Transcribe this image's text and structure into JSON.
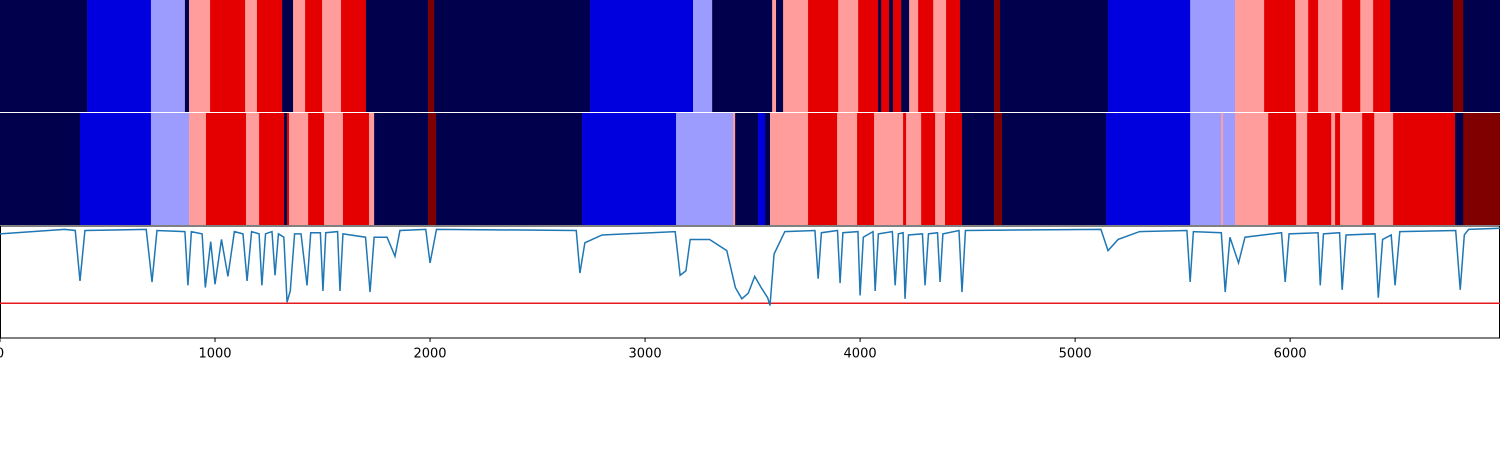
{
  "chart_data": [
    {
      "type": "band",
      "xlim": [
        0,
        6976
      ],
      "colors": [
        "#00004c",
        "#0000de",
        "#9c9cff",
        "#ff9c9c",
        "#e40000",
        "#800000"
      ],
      "starts": [
        0,
        405,
        702,
        860,
        879,
        977,
        1140,
        1195,
        1312,
        1363,
        1419,
        1498,
        1586,
        1702,
        1991,
        2019,
        2744,
        3223,
        3312,
        3591,
        3609,
        3642,
        3758,
        3898,
        3991,
        4084,
        4098,
        4135,
        4153,
        4191,
        4228,
        4270,
        4340,
        4400,
        4465,
        4623,
        4651,
        5153,
        5535,
        5744,
        5879,
        6023,
        6084,
        6130,
        6242,
        6326,
        6386,
        6465,
        6758,
        6805
      ],
      "states": [
        0,
        1,
        2,
        0,
        3,
        4,
        3,
        4,
        0,
        3,
        4,
        3,
        4,
        0,
        5,
        0,
        1,
        2,
        0,
        3,
        0,
        3,
        4,
        3,
        4,
        0,
        4,
        0,
        4,
        0,
        3,
        4,
        3,
        4,
        0,
        5,
        0,
        1,
        2,
        3,
        4,
        3,
        4,
        3,
        4,
        3,
        4,
        0,
        5,
        0
      ]
    },
    {
      "type": "band",
      "xlim": [
        0,
        6976
      ],
      "colors": [
        "#00004c",
        "#0000de",
        "#9c9cff",
        "#ff9c9c",
        "#e40000",
        "#800000"
      ],
      "starts": [
        0,
        372,
        702,
        879,
        958,
        1144,
        1205,
        1321,
        1335,
        1344,
        1433,
        1507,
        1595,
        1716,
        1740,
        1991,
        2028,
        2707,
        3144,
        3409,
        3419,
        3525,
        3558,
        3581,
        3758,
        3893,
        3986,
        4065,
        4200,
        4214,
        4284,
        4349,
        4395,
        4474,
        4623,
        4660,
        5144,
        5535,
        5679,
        5688,
        5744,
        5898,
        6028,
        6079,
        6191,
        6209,
        6232,
        6335,
        6391,
        6479,
        6767,
        6805
      ],
      "states": [
        0,
        1,
        2,
        3,
        4,
        3,
        4,
        0,
        4,
        3,
        4,
        3,
        4,
        3,
        0,
        5,
        0,
        1,
        2,
        3,
        0,
        1,
        0,
        3,
        4,
        3,
        4,
        3,
        4,
        3,
        4,
        3,
        4,
        0,
        5,
        0,
        1,
        2,
        3,
        2,
        3,
        4,
        3,
        4,
        3,
        4,
        3,
        4,
        3,
        4,
        0,
        5
      ]
    },
    {
      "type": "line",
      "xlim": [
        0,
        6976
      ],
      "ylim": [
        0,
        1
      ],
      "color": "#1f77b4",
      "threshold": 0.31,
      "threshold_color": "#e41a1c",
      "xticks": [
        0,
        1000,
        2000,
        3000,
        4000,
        5000,
        6000
      ],
      "x": [
        0,
        300,
        350,
        372,
        395,
        680,
        707,
        730,
        860,
        874,
        890,
        940,
        955,
        980,
        1000,
        1030,
        1060,
        1090,
        1130,
        1149,
        1170,
        1205,
        1218,
        1235,
        1265,
        1279,
        1295,
        1320,
        1335,
        1350,
        1370,
        1400,
        1428,
        1445,
        1490,
        1502,
        1515,
        1570,
        1581,
        1595,
        1700,
        1721,
        1740,
        1800,
        1837,
        1860,
        1980,
        2000,
        2030,
        2680,
        2697,
        2720,
        2800,
        3140,
        3163,
        3190,
        3210,
        3300,
        3380,
        3420,
        3450,
        3480,
        3510,
        3540,
        3570,
        3581,
        3600,
        3650,
        3790,
        3805,
        3820,
        3895,
        3907,
        3920,
        3990,
        4000,
        4015,
        4060,
        4070,
        4085,
        4150,
        4163,
        4178,
        4200,
        4209,
        4225,
        4290,
        4302,
        4318,
        4360,
        4372,
        4385,
        4460,
        4474,
        4490,
        5120,
        5153,
        5200,
        5300,
        5520,
        5535,
        5550,
        5680,
        5698,
        5720,
        5760,
        5790,
        5960,
        5977,
        5995,
        6130,
        6140,
        6155,
        6230,
        6242,
        6260,
        6395,
        6410,
        6430,
        6470,
        6488,
        6510,
        6770,
        6791,
        6810,
        6830,
        6976
      ],
      "values": [
        0.93,
        0.97,
        0.96,
        0.51,
        0.96,
        0.97,
        0.5,
        0.96,
        0.95,
        0.47,
        0.95,
        0.93,
        0.45,
        0.86,
        0.48,
        0.88,
        0.55,
        0.95,
        0.93,
        0.51,
        0.95,
        0.93,
        0.47,
        0.93,
        0.95,
        0.56,
        0.93,
        0.9,
        0.32,
        0.42,
        0.93,
        0.93,
        0.47,
        0.94,
        0.94,
        0.42,
        0.94,
        0.95,
        0.42,
        0.93,
        0.9,
        0.41,
        0.9,
        0.9,
        0.73,
        0.96,
        0.97,
        0.67,
        0.97,
        0.96,
        0.58,
        0.85,
        0.92,
        0.95,
        0.56,
        0.6,
        0.88,
        0.88,
        0.78,
        0.45,
        0.35,
        0.4,
        0.55,
        0.45,
        0.36,
        0.29,
        0.75,
        0.95,
        0.96,
        0.53,
        0.94,
        0.96,
        0.49,
        0.94,
        0.95,
        0.38,
        0.9,
        0.95,
        0.42,
        0.93,
        0.95,
        0.47,
        0.93,
        0.94,
        0.35,
        0.92,
        0.93,
        0.47,
        0.93,
        0.94,
        0.5,
        0.93,
        0.96,
        0.41,
        0.96,
        0.97,
        0.78,
        0.88,
        0.95,
        0.96,
        0.5,
        0.95,
        0.94,
        0.41,
        0.9,
        0.67,
        0.9,
        0.94,
        0.5,
        0.93,
        0.94,
        0.47,
        0.93,
        0.94,
        0.43,
        0.92,
        0.93,
        0.36,
        0.88,
        0.92,
        0.47,
        0.95,
        0.96,
        0.43,
        0.92,
        0.97,
        0.98
      ]
    }
  ]
}
